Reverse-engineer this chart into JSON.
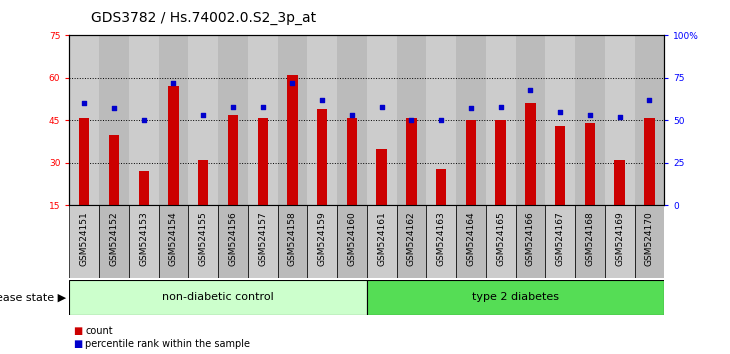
{
  "title": "GDS3782 / Hs.74002.0.S2_3p_at",
  "samples": [
    "GSM524151",
    "GSM524152",
    "GSM524153",
    "GSM524154",
    "GSM524155",
    "GSM524156",
    "GSM524157",
    "GSM524158",
    "GSM524159",
    "GSM524160",
    "GSM524161",
    "GSM524162",
    "GSM524163",
    "GSM524164",
    "GSM524165",
    "GSM524166",
    "GSM524167",
    "GSM524168",
    "GSM524169",
    "GSM524170"
  ],
  "counts": [
    46,
    40,
    27,
    57,
    31,
    47,
    46,
    61,
    49,
    46,
    35,
    46,
    28,
    45,
    45,
    51,
    43,
    44,
    31,
    46
  ],
  "percentiles": [
    60,
    57,
    50,
    72,
    53,
    58,
    58,
    72,
    62,
    53,
    58,
    50,
    50,
    57,
    58,
    68,
    55,
    53,
    52,
    62
  ],
  "ymin": 15,
  "ymax": 75,
  "yticks_left": [
    15,
    30,
    45,
    60,
    75
  ],
  "yticks_right": [
    0,
    25,
    50,
    75,
    100
  ],
  "ytick_labels_right": [
    "0",
    "25",
    "50",
    "75",
    "100%"
  ],
  "grid_lines": [
    30,
    45,
    60
  ],
  "bar_color": "#cc0000",
  "dot_color": "#0000cc",
  "non_diabetic_count": 10,
  "type2_count": 10,
  "group1_label": "non-diabetic control",
  "group2_label": "type 2 diabetes",
  "group1_color": "#ccffcc",
  "group2_color": "#55dd55",
  "col_bg_even": "#cccccc",
  "col_bg_odd": "#bbbbbb",
  "legend_count_label": "count",
  "legend_pct_label": "percentile rank within the sample",
  "disease_state_label": "disease state",
  "title_fontsize": 10,
  "tick_fontsize": 6.5,
  "label_fontsize": 8
}
